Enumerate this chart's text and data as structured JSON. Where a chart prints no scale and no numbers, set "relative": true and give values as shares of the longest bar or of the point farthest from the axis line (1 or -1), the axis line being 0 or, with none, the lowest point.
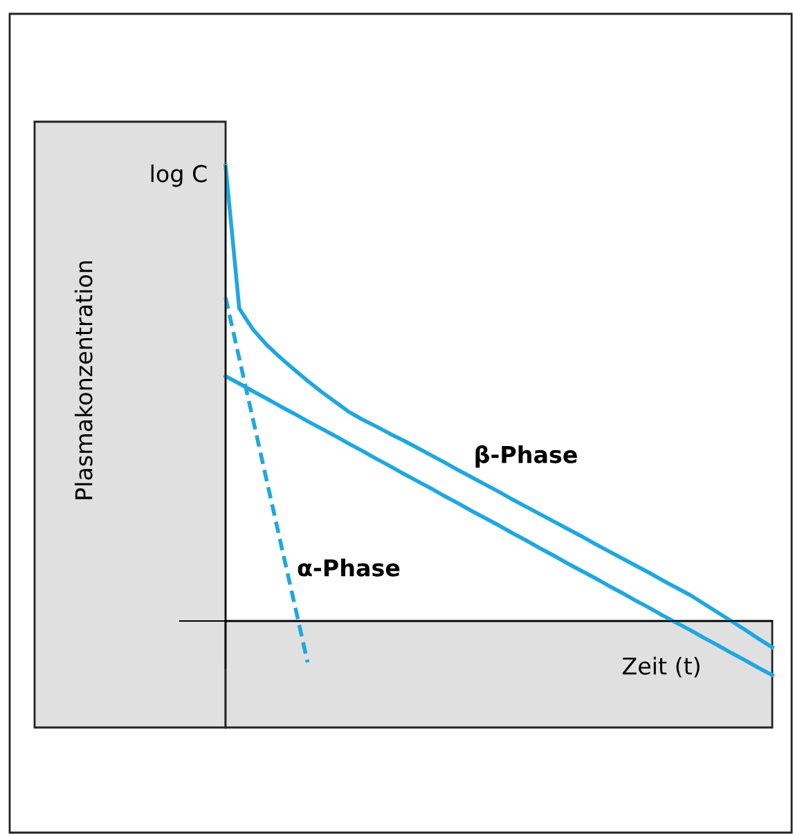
{
  "chart_data": {
    "type": "line",
    "relative": true,
    "xlabel": "Zeit (t)",
    "annotations": [
      "log C",
      "Plasmakonzentration"
    ],
    "categories": [
      null,
      null,
      null,
      null,
      null,
      null,
      null,
      null,
      null,
      null,
      null,
      null,
      null,
      null,
      null,
      null,
      null,
      null,
      null,
      null,
      null,
      null,
      null,
      null,
      null,
      null,
      null,
      null,
      null,
      null,
      null,
      null,
      null,
      null,
      null,
      null,
      null,
      null,
      null,
      null,
      null
    ],
    "series": [
      {
        "color": "#1ea7e1",
        "line_style": "solid",
        "values": [
          1.0,
          0.687,
          0.641,
          0.607,
          0.579,
          0.553,
          0.528,
          0.504,
          0.482,
          0.46,
          0.443,
          0.428,
          0.412,
          0.397,
          0.381,
          0.365,
          0.349,
          0.332,
          0.316,
          0.3,
          0.284,
          0.267,
          0.251,
          0.235,
          0.219,
          0.203,
          0.187,
          0.17,
          0.154,
          0.138,
          0.122,
          0.106,
          0.089,
          0.073,
          0.057,
          0.038,
          0.019,
          0.0,
          -0.019,
          -0.039,
          -0.058
        ]
      },
      {
        "name": "β-Phase",
        "color": "#1ea7e1",
        "line_style": "solid",
        "values": [
          0.538,
          0.522,
          0.505,
          0.489,
          0.472,
          0.456,
          0.439,
          0.423,
          0.407,
          0.39,
          0.374,
          0.357,
          0.341,
          0.324,
          0.308,
          0.292,
          0.275,
          0.259,
          0.242,
          0.226,
          0.21,
          0.193,
          0.177,
          0.16,
          0.144,
          0.127,
          0.111,
          0.095,
          0.078,
          0.062,
          0.045,
          0.029,
          0.012,
          -0.004,
          -0.02,
          -0.037,
          -0.053,
          -0.07,
          -0.086,
          -0.103,
          -0.119
        ]
      },
      {
        "name": "α-Phase",
        "color": "#1ea7e1",
        "line_style": "dashed",
        "values": [
          0.711,
          0.577,
          0.444,
          0.31,
          0.176,
          0.043,
          -0.091,
          null,
          null,
          null,
          null,
          null,
          null,
          null,
          null,
          null,
          null,
          null,
          null,
          null,
          null,
          null,
          null,
          null,
          null,
          null,
          null,
          null,
          null,
          null,
          null,
          null,
          null,
          null,
          null,
          null,
          null,
          null,
          null,
          null,
          null
        ]
      }
    ],
    "legend": false
  }
}
